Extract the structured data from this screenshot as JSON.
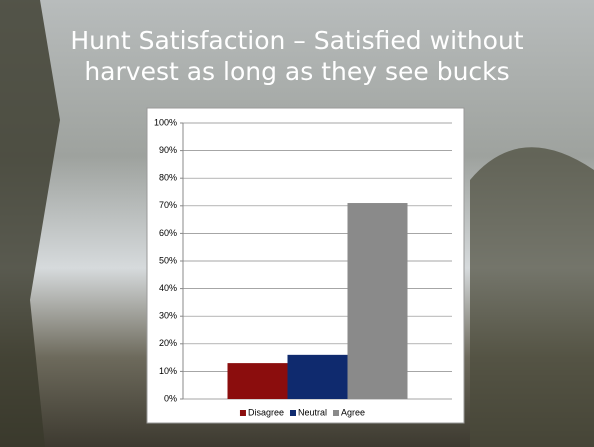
{
  "title_lines": [
    "Hunt Satisfaction – Satisfied without",
    "harvest as long as they see bucks"
  ],
  "chart_data": {
    "type": "bar",
    "series": [
      {
        "name": "Disagree",
        "color": "#8b0d0d",
        "values": [
          13
        ]
      },
      {
        "name": "Neutral",
        "color": "#0f2a6e",
        "values": [
          16
        ]
      },
      {
        "name": "Agree",
        "color": "#8a8a8a",
        "values": [
          71
        ]
      }
    ],
    "ylim": [
      0,
      100
    ],
    "yticks": [
      {
        "value": 0,
        "label": "0%"
      },
      {
        "value": 10,
        "label": "10%"
      },
      {
        "value": 20,
        "label": "20%"
      },
      {
        "value": 30,
        "label": "30%"
      },
      {
        "value": 40,
        "label": "40%"
      },
      {
        "value": 50,
        "label": "50%"
      },
      {
        "value": 60,
        "label": "60%"
      },
      {
        "value": 70,
        "label": "70%"
      },
      {
        "value": 80,
        "label": "80%"
      },
      {
        "value": 90,
        "label": "90%"
      },
      {
        "value": 100,
        "label": "100%"
      }
    ],
    "grid": true,
    "legend": "bottom"
  }
}
